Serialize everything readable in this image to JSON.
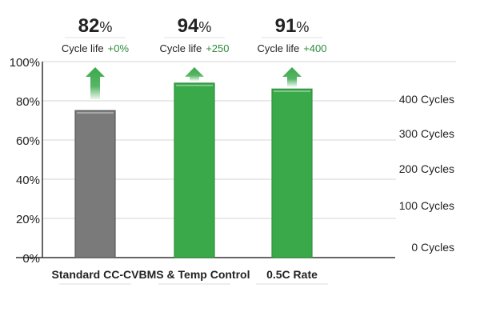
{
  "chart_data": {
    "type": "bar",
    "categories": [
      "Standard CC-CV",
      "BMS & Temp Control",
      "0.5C Rate"
    ],
    "values": [
      75,
      89,
      86
    ],
    "ylim": [
      0,
      100
    ],
    "y_ticks": [
      "0%",
      "20%",
      "40%",
      "60%",
      "80%",
      "100%"
    ],
    "right_axis_ticks": [
      "0 Cycles",
      "100 Cycles",
      "200 Cycles",
      "300 Cycles",
      "400 Cycles"
    ],
    "annotations": [
      {
        "headline_number": "82",
        "headline_unit": "%",
        "caption": "Cycle life",
        "delta": "+0%"
      },
      {
        "headline_number": "94",
        "headline_unit": "%",
        "caption": "Cycle life",
        "delta": "+250"
      },
      {
        "headline_number": "91",
        "headline_unit": "%",
        "caption": "Cycle life",
        "delta": "+400"
      }
    ],
    "bar_colors": [
      "#7a7a7a",
      "#3aa94a",
      "#3aa94a"
    ],
    "arrow_color": "#3aa94a",
    "delta_color": "#2e8b3e",
    "grid": true
  }
}
